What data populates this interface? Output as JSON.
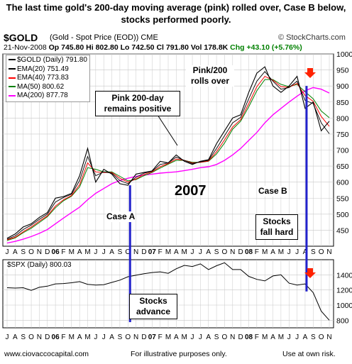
{
  "headline": "The last time gold's 200-day moving average (pink) rolled over, Case B below, stocks performed poorly.",
  "header": {
    "symbol": "$GOLD",
    "description": "(Gold - Spot Price (EOD)) CME",
    "source": "© StockCharts.com",
    "date": "21-Nov-2008",
    "open": "Op 745.80",
    "high": "Hi 802.80",
    "low": "Lo 742.50",
    "close": "Cl 791.80",
    "volume": "Vol 178.8K",
    "change": "Chg +43.10 (+5.76%)"
  },
  "legend": [
    {
      "label": "$GOLD (Daily) 791.80",
      "color": "#000000"
    },
    {
      "label": "EMA(20) 751.49",
      "color": "#000000"
    },
    {
      "label": "EMA(40) 773.83",
      "color": "#ff0000"
    },
    {
      "label": "MA(50) 800.62",
      "color": "#008000"
    },
    {
      "label": "MA(200) 877.78",
      "color": "#ff00ff"
    }
  ],
  "spx_header": "$SPX (Daily) 800.03",
  "annotations": {
    "pink_positive": "Pink 200-day remains positive",
    "pink_rolls": "Pink/200 rolls over",
    "year": "2007",
    "case_a": "Case A",
    "case_b": "Case B",
    "stocks_fall": "Stocks fall hard",
    "stocks_advance": "Stocks advance"
  },
  "footer": {
    "website": "www.ciovaccocapital.com",
    "illustrative": "For illustrative purposes only.",
    "risk": "Use at own risk."
  },
  "colors": {
    "price": "#000000",
    "ema20": "#000000",
    "ema40": "#ff0000",
    "ma50": "#008000",
    "ma200": "#ff00ff",
    "case_line": "#2222cc",
    "arrow": "#ff2200",
    "grid": "#c8c8c8"
  },
  "chart_data": [
    {
      "type": "line",
      "ylim": [
        400,
        1000
      ],
      "y_ticks": [
        450,
        500,
        550,
        600,
        650,
        700,
        750,
        800,
        850,
        900,
        950,
        1000
      ],
      "x_tick_labels": [
        "J",
        "A",
        "S",
        "O",
        "N",
        "D",
        "06",
        "F",
        "M",
        "A",
        "M",
        "J",
        "J",
        "A",
        "S",
        "O",
        "N",
        "D",
        "07",
        "F",
        "M",
        "A",
        "M",
        "J",
        "J",
        "A",
        "S",
        "O",
        "N",
        "D",
        "08",
        "F",
        "M",
        "A",
        "M",
        "J",
        "J",
        "A",
        "S",
        "O",
        "N"
      ],
      "x": [
        "2005-07",
        "2005-08",
        "2005-09",
        "2005-10",
        "2005-11",
        "2005-12",
        "2006-01",
        "2006-02",
        "2006-03",
        "2006-04",
        "2006-05",
        "2006-06",
        "2006-07",
        "2006-08",
        "2006-09",
        "2006-10",
        "2006-11",
        "2006-12",
        "2007-01",
        "2007-02",
        "2007-03",
        "2007-04",
        "2007-05",
        "2007-06",
        "2007-07",
        "2007-08",
        "2007-09",
        "2007-10",
        "2007-11",
        "2007-12",
        "2008-01",
        "2008-02",
        "2008-03",
        "2008-04",
        "2008-05",
        "2008-06",
        "2008-07",
        "2008-08",
        "2008-09",
        "2008-10",
        "2008-11"
      ],
      "series": [
        {
          "name": "$GOLD (Daily) 791.80",
          "values": [
            425,
            438,
            460,
            470,
            490,
            505,
            550,
            555,
            565,
            620,
            705,
            600,
            640,
            625,
            595,
            590,
            625,
            630,
            635,
            665,
            660,
            685,
            665,
            655,
            665,
            670,
            720,
            760,
            800,
            810,
            880,
            940,
            960,
            900,
            880,
            900,
            930,
            830,
            850,
            760,
            790
          ]
        },
        {
          "name": "EMA(20) 751.49",
          "values": [
            422,
            432,
            452,
            466,
            484,
            500,
            538,
            552,
            562,
            605,
            680,
            620,
            632,
            628,
            605,
            595,
            615,
            628,
            634,
            655,
            660,
            678,
            668,
            658,
            663,
            668,
            705,
            745,
            785,
            802,
            860,
            915,
            945,
            915,
            890,
            895,
            915,
            855,
            845,
            785,
            751
          ]
        },
        {
          "name": "EMA(40) 773.83",
          "values": [
            420,
            428,
            445,
            460,
            478,
            495,
            525,
            545,
            558,
            592,
            660,
            632,
            630,
            630,
            612,
            600,
            610,
            624,
            632,
            648,
            658,
            672,
            668,
            660,
            662,
            666,
            695,
            732,
            772,
            795,
            845,
            898,
            930,
            918,
            898,
            896,
            908,
            870,
            852,
            805,
            774
          ]
        },
        {
          "name": "MA(50) 800.62",
          "values": [
            418,
            426,
            442,
            456,
            474,
            492,
            520,
            542,
            556,
            585,
            645,
            640,
            632,
            632,
            618,
            604,
            608,
            620,
            630,
            644,
            656,
            668,
            668,
            662,
            662,
            665,
            688,
            722,
            765,
            790,
            835,
            885,
            920,
            920,
            905,
            898,
            905,
            882,
            860,
            822,
            801
          ]
        },
        {
          "name": "MA(200) 877.78",
          "values": [
            410,
            415,
            422,
            430,
            440,
            452,
            470,
            488,
            505,
            522,
            545,
            565,
            580,
            595,
            605,
            612,
            618,
            622,
            625,
            628,
            630,
            632,
            636,
            640,
            645,
            648,
            655,
            668,
            685,
            705,
            730,
            755,
            785,
            810,
            830,
            850,
            868,
            885,
            895,
            890,
            878
          ]
        }
      ],
      "annotations": [
        "Pink 200-day remains positive",
        "Pink/200 rolls over",
        "2007",
        "Case A",
        "Case B"
      ]
    },
    {
      "type": "line",
      "ylim": [
        700,
        1600
      ],
      "y_ticks": [
        800,
        1000,
        1200,
        1400
      ],
      "x_tick_labels": [
        "J",
        "A",
        "S",
        "O",
        "N",
        "D",
        "06",
        "F",
        "M",
        "A",
        "M",
        "J",
        "J",
        "A",
        "S",
        "O",
        "N",
        "D",
        "07",
        "F",
        "M",
        "A",
        "M",
        "J",
        "J",
        "A",
        "S",
        "O",
        "N",
        "D",
        "08",
        "F",
        "M",
        "A",
        "M",
        "J",
        "J",
        "A",
        "S",
        "O",
        "N"
      ],
      "x": [
        "2005-07",
        "2005-08",
        "2005-09",
        "2005-10",
        "2005-11",
        "2005-12",
        "2006-01",
        "2006-02",
        "2006-03",
        "2006-04",
        "2006-05",
        "2006-06",
        "2006-07",
        "2006-08",
        "2006-09",
        "2006-10",
        "2006-11",
        "2006-12",
        "2007-01",
        "2007-02",
        "2007-03",
        "2007-04",
        "2007-05",
        "2007-06",
        "2007-07",
        "2007-08",
        "2007-09",
        "2007-10",
        "2007-11",
        "2007-12",
        "2008-01",
        "2008-02",
        "2008-03",
        "2008-04",
        "2008-05",
        "2008-06",
        "2008-07",
        "2008-08",
        "2008-09",
        "2008-10",
        "2008-11"
      ],
      "series": [
        {
          "name": "$SPX (Daily) 800.03",
          "values": [
            1230,
            1225,
            1230,
            1195,
            1235,
            1250,
            1280,
            1285,
            1295,
            1310,
            1275,
            1265,
            1270,
            1300,
            1330,
            1375,
            1395,
            1415,
            1430,
            1440,
            1420,
            1480,
            1525,
            1510,
            1545,
            1470,
            1520,
            1560,
            1470,
            1470,
            1380,
            1340,
            1320,
            1385,
            1400,
            1290,
            1265,
            1280,
            1165,
            920,
            800
          ]
        }
      ],
      "annotations": [
        "Stocks advance",
        "Stocks fall hard"
      ]
    }
  ]
}
